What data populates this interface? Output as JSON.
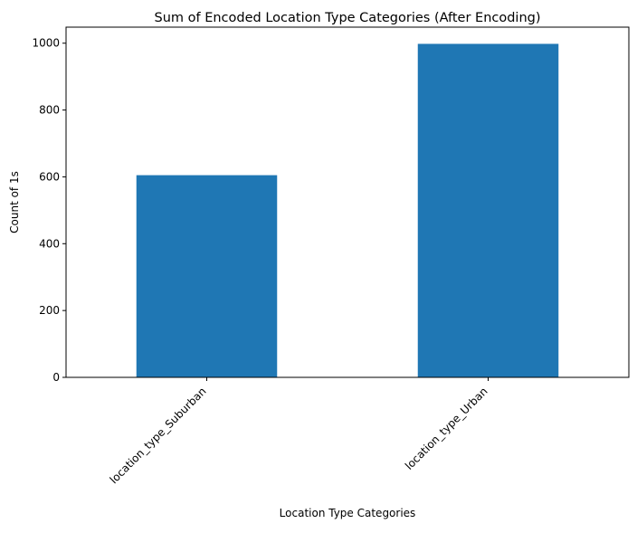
{
  "chart_data": {
    "type": "bar",
    "title": "Sum of Encoded Location Type Categories (After Encoding)",
    "xlabel": "Location Type Categories",
    "ylabel": "Count of 1s",
    "categories": [
      "location_type_Suburban",
      "location_type_Urban"
    ],
    "values": [
      605,
      998
    ],
    "ylim": [
      0,
      1048
    ],
    "yticks": [
      0,
      200,
      400,
      600,
      800,
      1000
    ],
    "grid": false,
    "legend": "none",
    "bar_color": "#1f77b4"
  }
}
